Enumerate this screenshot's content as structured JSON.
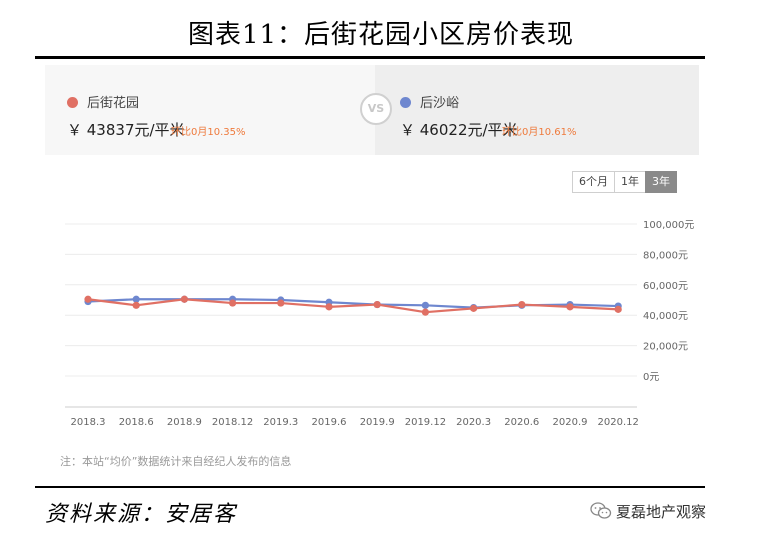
{
  "figure": {
    "title": "图表11：后街花园小区房价表现",
    "source": "资料来源：安居客",
    "watermark": "夏磊地产观察"
  },
  "compare": {
    "vs_label": "VS",
    "left": {
      "name": "后街花园",
      "price": "￥ 43837元/平米",
      "mom": "环比0月10.35%",
      "color": "#e07064"
    },
    "right": {
      "name": "后沙峪",
      "price": "￥ 46022元/平米",
      "mom": "环比0月10.61%",
      "color": "#6e87cf"
    }
  },
  "range_buttons": [
    {
      "label": "6个月",
      "active": false
    },
    {
      "label": "1年",
      "active": false
    },
    {
      "label": "3年",
      "active": true
    }
  ],
  "note": "注：本站“均价”数据统计来自经纪人发布的信息",
  "chart_data": {
    "type": "line",
    "x": [
      "2018.3",
      "2018.6",
      "2018.9",
      "2018.12",
      "2019.3",
      "2019.6",
      "2019.9",
      "2019.12",
      "2020.3",
      "2020.6",
      "2020.9",
      "2020.12"
    ],
    "ylim": [
      0,
      100000
    ],
    "y_ticks": [
      "0元",
      "20,000元",
      "40,000元",
      "60,000元",
      "80,000元",
      "100,000元"
    ],
    "grid": true,
    "series": [
      {
        "name": "后街花园",
        "color": "#e07064",
        "values": [
          50500,
          46500,
          50500,
          48000,
          48000,
          45500,
          47000,
          42000,
          44500,
          47000,
          45500,
          43837
        ]
      },
      {
        "name": "后沙峪",
        "color": "#6e87cf",
        "values": [
          49000,
          50500,
          50500,
          50500,
          50000,
          48500,
          47000,
          46500,
          45000,
          46500,
          47000,
          46022
        ]
      }
    ]
  }
}
